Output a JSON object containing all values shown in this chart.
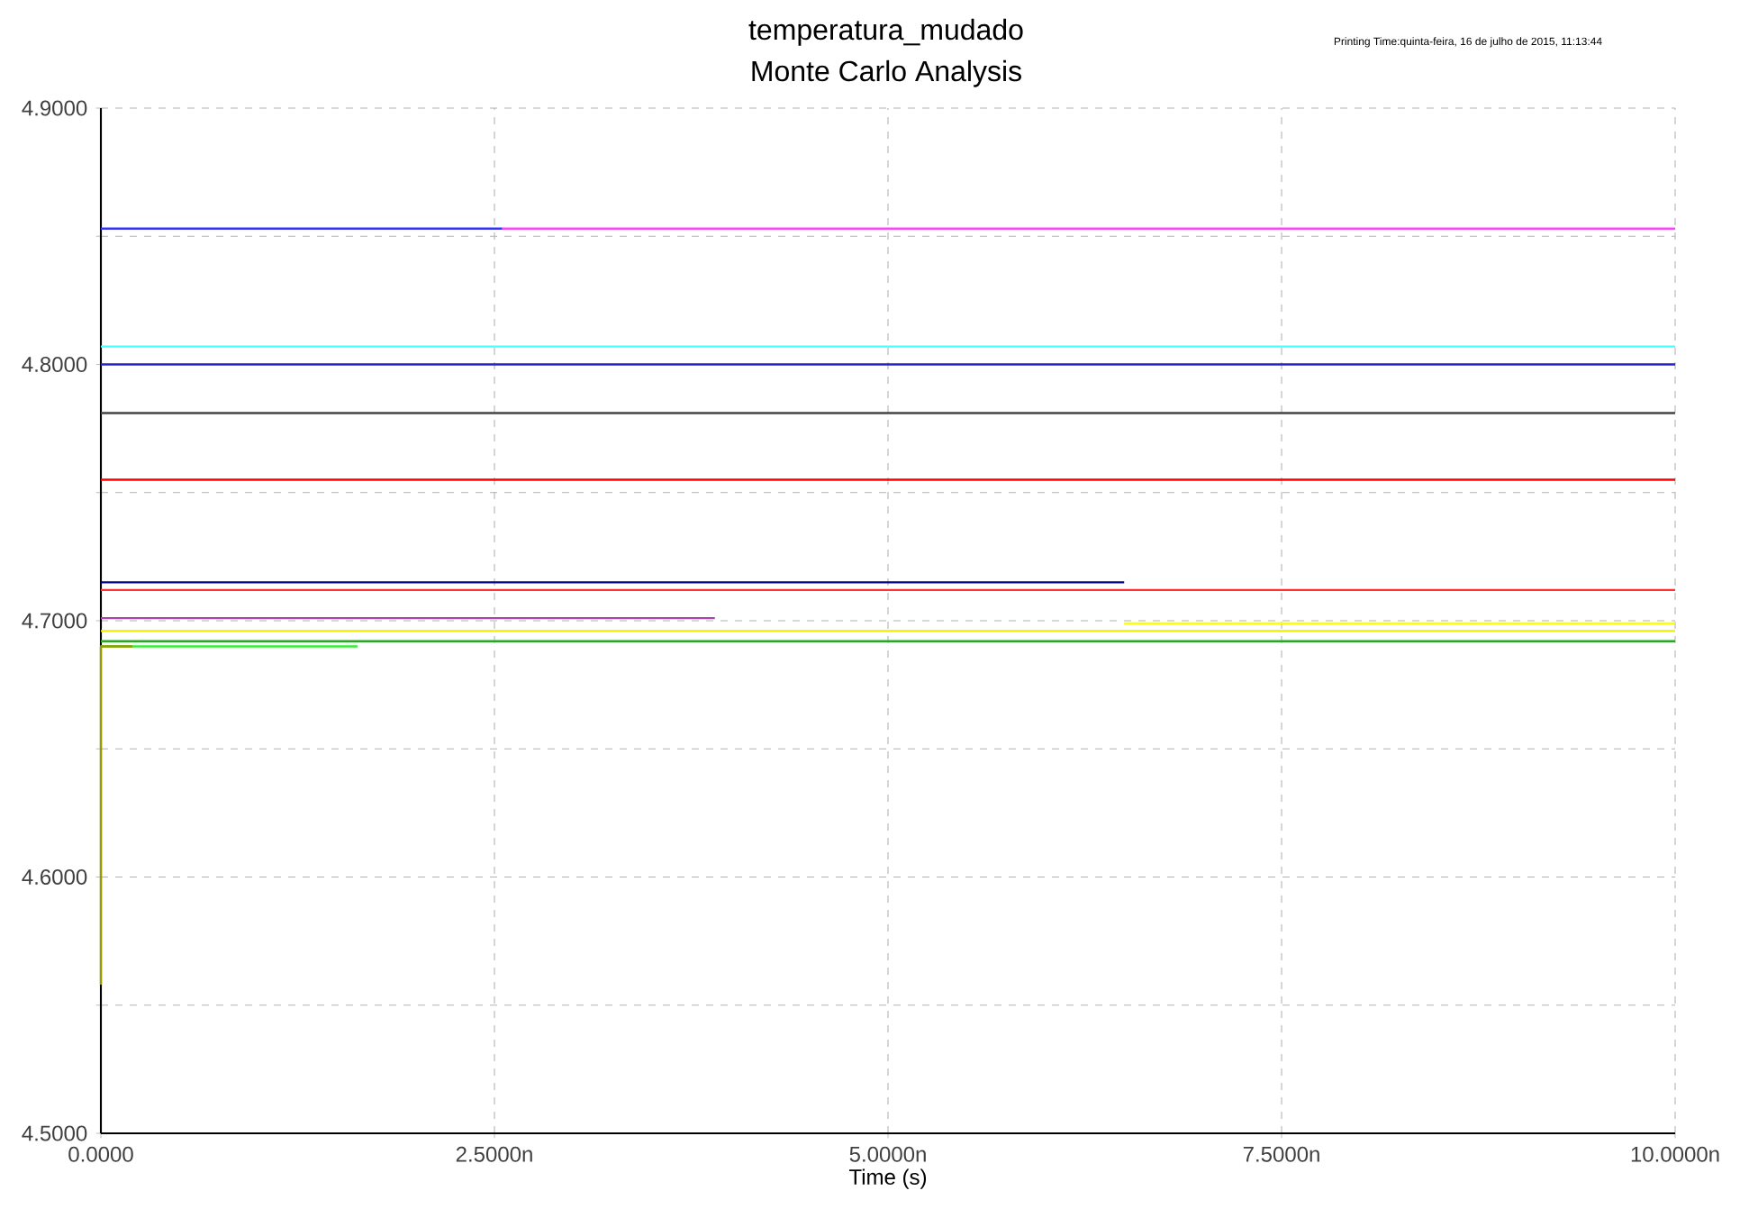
{
  "chart_data": {
    "type": "line",
    "title": "temperatura_mudado",
    "subtitle": "Monte Carlo Analysis",
    "xlabel": "Time (s)",
    "annotations": [
      "Printing Time:quinta-feira, 16 de julho de 2015, 11:13:44"
    ],
    "xlim": [
      0,
      10
    ],
    "ylim": [
      4.5,
      4.9
    ],
    "xticks": [
      {
        "value": 0,
        "label": "0.0000"
      },
      {
        "value": 2.5,
        "label": "2.5000n"
      },
      {
        "value": 5,
        "label": "5.0000n"
      },
      {
        "value": 7.5,
        "label": "7.5000n"
      },
      {
        "value": 10,
        "label": "10.0000n"
      }
    ],
    "yticks": [
      {
        "value": 4.5,
        "label": "4.5000"
      },
      {
        "value": 4.55,
        "label": null
      },
      {
        "value": 4.6,
        "label": "4.6000"
      },
      {
        "value": 4.65,
        "label": null
      },
      {
        "value": 4.7,
        "label": "4.7000"
      },
      {
        "value": 4.75,
        "label": null
      },
      {
        "value": 4.8,
        "label": "4.8000"
      },
      {
        "value": 4.85,
        "label": null
      },
      {
        "value": 4.9,
        "label": "4.9000"
      }
    ],
    "grid": true,
    "series": [
      {
        "color": "#3333ff",
        "x": [
          0,
          2.55
        ],
        "values": [
          4.853,
          4.853
        ]
      },
      {
        "color": "#ff44ff",
        "x": [
          2.55,
          10
        ],
        "values": [
          4.853,
          4.853
        ]
      },
      {
        "color": "#44ffff",
        "x": [
          0,
          10
        ],
        "values": [
          4.807,
          4.807
        ]
      },
      {
        "color": "#2222cc",
        "x": [
          0,
          10
        ],
        "values": [
          4.8,
          4.8
        ]
      },
      {
        "color": "#444444",
        "x": [
          0,
          10
        ],
        "values": [
          4.781,
          4.781
        ]
      },
      {
        "color": "#ff0000",
        "x": [
          0,
          10
        ],
        "values": [
          4.755,
          4.755
        ]
      },
      {
        "color": "#000080",
        "x": [
          0,
          6.5
        ],
        "values": [
          4.715,
          4.715
        ]
      },
      {
        "color": "#ff3333",
        "x": [
          0,
          10
        ],
        "values": [
          4.712,
          4.712
        ]
      },
      {
        "color": "#aa44aa",
        "x": [
          0,
          3.9
        ],
        "values": [
          4.701,
          4.701
        ]
      },
      {
        "color": "#ffff00",
        "x": [
          6.5,
          10
        ],
        "values": [
          4.699,
          4.699
        ]
      },
      {
        "color": "#eeee00",
        "x": [
          0,
          10
        ],
        "values": [
          4.696,
          4.696
        ]
      },
      {
        "color": "#22aa22",
        "x": [
          0,
          10
        ],
        "values": [
          4.692,
          4.692
        ]
      },
      {
        "color": "#33ee33",
        "x": [
          0,
          1.63
        ],
        "values": [
          4.69,
          4.69
        ]
      },
      {
        "color": "#999900",
        "x": [
          0,
          0,
          0.2
        ],
        "values": [
          4.558,
          4.69,
          4.69
        ]
      }
    ]
  }
}
